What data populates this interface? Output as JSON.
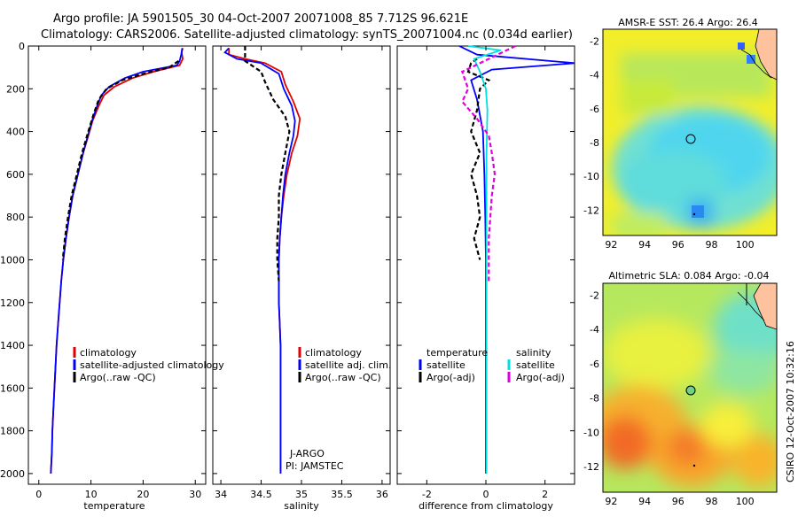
{
  "header": {
    "line1": "Argo profile: JA 5901505_30 04-Oct-2007 20071008_85 7.712S 96.621E",
    "line2": "Climatology: CARS2006. Satellite-adjusted climatology: synTS_20071004.nc (0.034d earlier)"
  },
  "side_label": "CSIRO 12-Oct-2007 10:32:16",
  "colors": {
    "clim": "#e00000",
    "sat": "#0000ff",
    "argo": "#000000",
    "sal_sat": "#00e0e0",
    "sal_argo": "#e000e0"
  },
  "chart_data": [
    {
      "type": "line",
      "id": "temperature",
      "xlabel": "temperature",
      "ylabel": "",
      "xlim": [
        -2,
        32
      ],
      "ylim": [
        2050,
        0
      ],
      "xticks": [
        0,
        10,
        20,
        30
      ],
      "yticks": [
        0,
        200,
        400,
        600,
        800,
        1000,
        1200,
        1400,
        1600,
        1800,
        2000
      ],
      "legend": [
        "climatology",
        "satellite-adjusted climatology",
        "Argo(..raw -QC)"
      ],
      "series": [
        {
          "name": "climatology",
          "color": "clim",
          "dash": false,
          "points": [
            [
              27.6,
              10
            ],
            [
              27.4,
              30
            ],
            [
              27.6,
              60
            ],
            [
              27,
              90
            ],
            [
              22,
              120
            ],
            [
              18,
              150
            ],
            [
              14.5,
              190
            ],
            [
              12.5,
              230
            ],
            [
              11.5,
              280
            ],
            [
              10.3,
              350
            ],
            [
              9.5,
              420
            ],
            [
              8.5,
              500
            ],
            [
              7.5,
              600
            ],
            [
              6.5,
              700
            ],
            [
              5.8,
              800
            ],
            [
              5.2,
              900
            ],
            [
              4.7,
              1000
            ],
            [
              4.3,
              1100
            ],
            [
              4,
              1200
            ],
            [
              3.7,
              1300
            ],
            [
              3.4,
              1400
            ],
            [
              3.2,
              1500
            ],
            [
              3,
              1600
            ],
            [
              2.8,
              1700
            ],
            [
              2.6,
              1800
            ],
            [
              2.5,
              1900
            ],
            [
              2.3,
              2000
            ]
          ]
        },
        {
          "name": "satellite-adjusted climatology",
          "color": "sat",
          "dash": false,
          "points": [
            [
              27.5,
              10
            ],
            [
              27.3,
              40
            ],
            [
              27,
              70
            ],
            [
              26.5,
              90
            ],
            [
              20,
              120
            ],
            [
              16.5,
              150
            ],
            [
              13.5,
              190
            ],
            [
              12,
              230
            ],
            [
              11.2,
              280
            ],
            [
              10.2,
              350
            ],
            [
              9.4,
              420
            ],
            [
              8.5,
              500
            ],
            [
              7.5,
              600
            ],
            [
              6.5,
              700
            ],
            [
              5.8,
              800
            ],
            [
              5.2,
              900
            ],
            [
              4.7,
              1000
            ],
            [
              4.3,
              1100
            ],
            [
              4,
              1200
            ],
            [
              3.7,
              1300
            ],
            [
              3.4,
              1400
            ],
            [
              3.2,
              1500
            ],
            [
              3,
              1600
            ],
            [
              2.8,
              1700
            ],
            [
              2.6,
              1800
            ],
            [
              2.5,
              1900
            ],
            [
              2.3,
              2000
            ]
          ]
        },
        {
          "name": "Argo(..raw -QC)",
          "color": "argo",
          "dash": true,
          "points": [
            [
              26.8,
              70
            ],
            [
              25,
              100
            ],
            [
              20,
              130
            ],
            [
              16,
              160
            ],
            [
              13,
              200
            ],
            [
              11.5,
              250
            ],
            [
              10.5,
              320
            ],
            [
              9.5,
              400
            ],
            [
              8.3,
              500
            ],
            [
              7.3,
              600
            ],
            [
              6.3,
              700
            ],
            [
              5.6,
              800
            ],
            [
              5,
              900
            ],
            [
              4.6,
              1000
            ]
          ]
        }
      ]
    },
    {
      "type": "line",
      "id": "salinity",
      "xlabel": "salinity",
      "ylabel": "",
      "xlim": [
        33.9,
        36.1
      ],
      "ylim": [
        2050,
        0
      ],
      "xticks": [
        34,
        34.5,
        35,
        35.5,
        36
      ],
      "yticks": [],
      "legend": [
        "climatology",
        "satellite adj. clim.",
        "Argo(..raw -QC)"
      ],
      "annotations": [
        "J-ARGO",
        "PI: JAMSTEC"
      ],
      "series": [
        {
          "name": "climatology",
          "color": "clim",
          "dash": false,
          "points": [
            [
              34.1,
              10
            ],
            [
              34.1,
              40
            ],
            [
              34.3,
              60
            ],
            [
              34.55,
              80
            ],
            [
              34.75,
              120
            ],
            [
              34.8,
              180
            ],
            [
              34.9,
              260
            ],
            [
              34.98,
              340
            ],
            [
              34.95,
              420
            ],
            [
              34.88,
              500
            ],
            [
              34.82,
              600
            ],
            [
              34.78,
              700
            ],
            [
              34.75,
              800
            ],
            [
              34.73,
              900
            ],
            [
              34.72,
              1000
            ],
            [
              34.72,
              1100
            ],
            [
              34.72,
              1200
            ],
            [
              34.73,
              1300
            ],
            [
              34.74,
              1400
            ],
            [
              34.74,
              1500
            ],
            [
              34.74,
              1600
            ],
            [
              34.74,
              1700
            ],
            [
              34.74,
              1800
            ],
            [
              34.74,
              1900
            ],
            [
              34.74,
              2000
            ]
          ]
        },
        {
          "name": "satellite adj. clim.",
          "color": "sat",
          "dash": false,
          "points": [
            [
              34.1,
              10
            ],
            [
              34.05,
              30
            ],
            [
              34.2,
              60
            ],
            [
              34.5,
              80
            ],
            [
              34.72,
              130
            ],
            [
              34.78,
              200
            ],
            [
              34.88,
              280
            ],
            [
              34.92,
              350
            ],
            [
              34.9,
              420
            ],
            [
              34.85,
              500
            ],
            [
              34.8,
              600
            ],
            [
              34.77,
              700
            ],
            [
              34.75,
              800
            ],
            [
              34.73,
              900
            ],
            [
              34.72,
              1000
            ],
            [
              34.72,
              1100
            ],
            [
              34.72,
              1200
            ],
            [
              34.73,
              1300
            ],
            [
              34.74,
              1400
            ],
            [
              34.74,
              1500
            ],
            [
              34.74,
              1600
            ],
            [
              34.74,
              1700
            ],
            [
              34.74,
              1800
            ],
            [
              34.74,
              1900
            ],
            [
              34.74,
              2000
            ]
          ]
        },
        {
          "name": "Argo(..raw -QC)",
          "color": "argo",
          "dash": true,
          "points": [
            [
              34.3,
              0
            ],
            [
              34.3,
              70
            ],
            [
              34.5,
              120
            ],
            [
              34.55,
              170
            ],
            [
              34.65,
              250
            ],
            [
              34.8,
              330
            ],
            [
              34.85,
              400
            ],
            [
              34.8,
              500
            ],
            [
              34.75,
              600
            ],
            [
              34.72,
              700
            ],
            [
              34.72,
              800
            ],
            [
              34.7,
              900
            ],
            [
              34.7,
              1000
            ],
            [
              34.72,
              1100
            ]
          ]
        }
      ]
    },
    {
      "type": "line",
      "id": "difference",
      "xlabel": "difference from climatology",
      "ylabel": "",
      "xlim": [
        -3,
        3
      ],
      "ylim": [
        2050,
        0
      ],
      "xticks": [
        -2,
        0,
        2
      ],
      "yticks": [],
      "legend_headers": [
        "temperature",
        "salinity"
      ],
      "legend": [
        "satellite",
        "Argo(-adj)",
        "satellite",
        "Argo(-adj)"
      ],
      "series": [
        {
          "name": "temperature satellite",
          "color": "sat",
          "dash": false,
          "points": [
            [
              -0.9,
              0
            ],
            [
              -0.3,
              40
            ],
            [
              3,
              80
            ],
            [
              0.2,
              110
            ],
            [
              -0.5,
              160
            ],
            [
              -0.3,
              250
            ],
            [
              -0.1,
              400
            ],
            [
              -0.05,
              600
            ],
            [
              -0.02,
              800
            ],
            [
              0,
              1000
            ],
            [
              0,
              1200
            ],
            [
              0,
              1500
            ],
            [
              0,
              1800
            ],
            [
              0,
              2000
            ]
          ]
        },
        {
          "name": "temperature Argo(-adj)",
          "color": "argo",
          "dash": true,
          "points": [
            [
              -0.3,
              60
            ],
            [
              -0.5,
              80
            ],
            [
              -0.6,
              120
            ],
            [
              0.1,
              160
            ],
            [
              -0.2,
              200
            ],
            [
              -0.3,
              300
            ],
            [
              -0.5,
              400
            ],
            [
              -0.2,
              500
            ],
            [
              -0.5,
              600
            ],
            [
              -0.3,
              700
            ],
            [
              -0.2,
              800
            ],
            [
              -0.4,
              900
            ],
            [
              -0.2,
              1000
            ]
          ]
        },
        {
          "name": "salinity satellite",
          "color": "sal_sat",
          "dash": false,
          "points": [
            [
              -0.6,
              0
            ],
            [
              0.5,
              20
            ],
            [
              -0.4,
              60
            ],
            [
              -0.2,
              120
            ],
            [
              0,
              200
            ],
            [
              0.05,
              300
            ],
            [
              0.02,
              500
            ],
            [
              0.02,
              800
            ],
            [
              0.02,
              1200
            ],
            [
              0.02,
              1600
            ],
            [
              0.02,
              2000
            ]
          ]
        },
        {
          "name": "salinity Argo(-adj)",
          "color": "sal_argo",
          "dash": true,
          "points": [
            [
              1,
              0
            ],
            [
              0.4,
              40
            ],
            [
              -0.8,
              120
            ],
            [
              -0.6,
              200
            ],
            [
              -0.8,
              260
            ],
            [
              -0.3,
              340
            ],
            [
              0.1,
              420
            ],
            [
              0.2,
              500
            ],
            [
              0.3,
              600
            ],
            [
              0.2,
              700
            ],
            [
              0.1,
              900
            ],
            [
              0.1,
              1100
            ]
          ]
        }
      ]
    },
    {
      "type": "heatmap",
      "id": "sst_map",
      "title": "AMSR-E SST: 26.4 Argo: 26.4",
      "xlim": [
        91.5,
        101.9
      ],
      "ylim": [
        -13.5,
        -1.3
      ],
      "xticks": [
        92,
        94,
        96,
        98,
        100
      ],
      "yticks": [
        -2,
        -4,
        -6,
        -8,
        -10,
        -12
      ],
      "marker": [
        96.62,
        -7.71
      ]
    },
    {
      "type": "heatmap",
      "id": "sla_map",
      "title": "Altimetric SLA: 0.084 Argo: -0.04",
      "xlim": [
        91.5,
        101.9
      ],
      "ylim": [
        -13.5,
        -1.3
      ],
      "xticks": [
        92,
        94,
        96,
        98,
        100
      ],
      "yticks": [
        -2,
        -4,
        -6,
        -8,
        -10,
        -12
      ],
      "marker": [
        96.62,
        -7.71
      ]
    }
  ]
}
